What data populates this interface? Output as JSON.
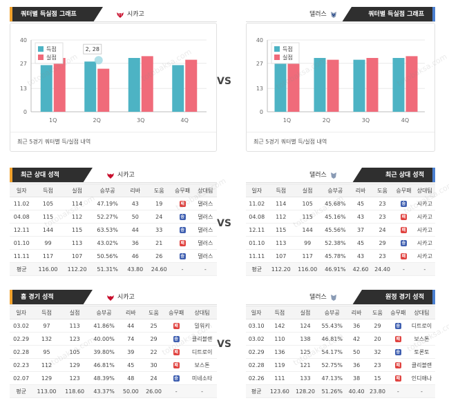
{
  "left_title": "쿼터별 득실점 그래프",
  "right_title": "쿼터별 득실점 그래프",
  "team_left": "시카고",
  "team_right": "댈러스",
  "vs": "VS",
  "chart_footer": "최근 5경기 쿼터별 득/실점 내역",
  "legend": {
    "scored": "득점",
    "allowed": "실점"
  },
  "colors": {
    "scored": "#4db3c4",
    "allowed": "#f06b7a"
  },
  "chart_left": {
    "type": "bar",
    "categories": [
      "1Q",
      "2Q",
      "3Q",
      "4Q"
    ],
    "ylim": [
      0,
      40
    ],
    "yticks": [
      "40",
      "27",
      "13",
      "0"
    ],
    "series": [
      {
        "name": "득점",
        "values": [
          26,
          28,
          30,
          26
        ]
      },
      {
        "name": "실점",
        "values": [
          30,
          24,
          31,
          29
        ]
      }
    ],
    "tooltip": "2, 28"
  },
  "chart_right": {
    "type": "bar",
    "categories": [
      "1Q",
      "2Q",
      "3Q",
      "4Q"
    ],
    "ylim": [
      0,
      40
    ],
    "yticks": [
      "40",
      "27",
      "13",
      "0"
    ],
    "series": [
      {
        "name": "득점",
        "values": [
          29,
          30,
          29,
          30
        ]
      },
      {
        "name": "실점",
        "values": [
          34,
          29,
          30,
          31
        ]
      }
    ]
  },
  "section2_title": "최근 상대 성적",
  "section3_left_title": "홈 경기 성적",
  "section3_right_title": "원정 경기 성적",
  "headers": [
    "일자",
    "득점",
    "실점",
    "승부공",
    "리바",
    "도움",
    "승무패",
    "상대팀"
  ],
  "recent_left": [
    [
      "11.02",
      "105",
      "114",
      "47.19%",
      "43",
      "19",
      "L",
      "댈러스"
    ],
    [
      "04.08",
      "115",
      "112",
      "52.27%",
      "50",
      "24",
      "W",
      "댈러스"
    ],
    [
      "12.11",
      "144",
      "115",
      "63.53%",
      "44",
      "33",
      "W",
      "댈러스"
    ],
    [
      "01.10",
      "99",
      "113",
      "43.02%",
      "36",
      "21",
      "L",
      "댈러스"
    ],
    [
      "11.11",
      "117",
      "107",
      "50.56%",
      "46",
      "26",
      "W",
      "댈러스"
    ]
  ],
  "recent_left_avg": [
    "평균",
    "116.00",
    "112.20",
    "51.31%",
    "43.80",
    "24.60",
    "-",
    "-"
  ],
  "recent_right": [
    [
      "11.02",
      "114",
      "105",
      "45.68%",
      "45",
      "23",
      "W",
      "시카고"
    ],
    [
      "04.08",
      "112",
      "115",
      "45.16%",
      "43",
      "23",
      "L",
      "시카고"
    ],
    [
      "12.11",
      "115",
      "144",
      "45.56%",
      "37",
      "24",
      "L",
      "시카고"
    ],
    [
      "01.10",
      "113",
      "99",
      "52.38%",
      "45",
      "29",
      "W",
      "시카고"
    ],
    [
      "11.11",
      "107",
      "117",
      "45.78%",
      "43",
      "23",
      "L",
      "시카고"
    ]
  ],
  "recent_right_avg": [
    "평균",
    "112.20",
    "116.00",
    "46.91%",
    "42.60",
    "24.40",
    "-",
    "-"
  ],
  "home_left": [
    [
      "03.02",
      "97",
      "113",
      "41.86%",
      "44",
      "25",
      "L",
      "밀워키"
    ],
    [
      "02.29",
      "132",
      "123",
      "40.00%",
      "74",
      "29",
      "W",
      "클리블랜"
    ],
    [
      "02.28",
      "95",
      "105",
      "39.80%",
      "39",
      "22",
      "L",
      "디트로이"
    ],
    [
      "02.23",
      "112",
      "129",
      "46.81%",
      "45",
      "30",
      "L",
      "보스톤"
    ],
    [
      "02.07",
      "129",
      "123",
      "48.39%",
      "48",
      "24",
      "W",
      "미네소타"
    ]
  ],
  "home_left_avg": [
    "평균",
    "113.00",
    "118.60",
    "43.37%",
    "50.00",
    "26.00",
    "-",
    "-"
  ],
  "away_right": [
    [
      "03.10",
      "142",
      "124",
      "55.43%",
      "36",
      "29",
      "W",
      "디트로이"
    ],
    [
      "03.02",
      "110",
      "138",
      "46.81%",
      "42",
      "20",
      "L",
      "보스톤"
    ],
    [
      "02.29",
      "136",
      "125",
      "54.17%",
      "50",
      "32",
      "W",
      "토론토"
    ],
    [
      "02.28",
      "119",
      "121",
      "52.75%",
      "36",
      "23",
      "L",
      "클리블랜"
    ],
    [
      "02.26",
      "111",
      "133",
      "47.13%",
      "38",
      "15",
      "L",
      "인디애나"
    ]
  ],
  "away_right_avg": [
    "평균",
    "123.60",
    "128.20",
    "51.26%",
    "40.40",
    "23.80",
    "-",
    "-"
  ],
  "result_glyphs": {
    "W": "승",
    "L": "패"
  }
}
